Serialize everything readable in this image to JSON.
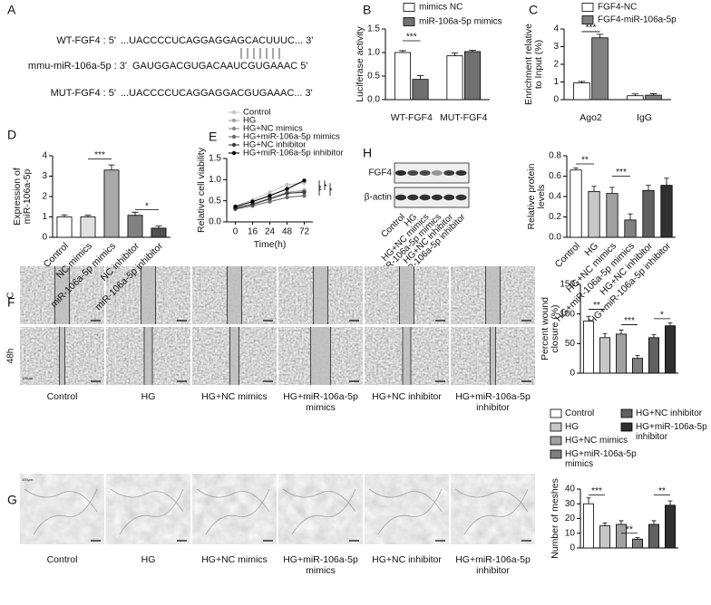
{
  "figure": {
    "panels": [
      "A",
      "B",
      "C",
      "D",
      "E",
      "F",
      "G",
      "H"
    ],
    "sequences": [
      {
        "label": "WT-FGF4 : 5'",
        "seq": "...UACCCCUCAGGAGGAGCACUUUC... 3'"
      },
      {
        "label": "mmu-miR-106a-5p : 3'",
        "seq": "GAUGGACGUGACAAUCGUGAAAC 5'"
      },
      {
        "label": "MUT-FGF4 : 5'",
        "seq": "...UACCCCUCAGGAGGACGUGAAAC... 3'"
      }
    ],
    "blot_labels": [
      "FGF4",
      "β-actin"
    ],
    "wound_rows": [
      "C",
      "48h"
    ],
    "scale_bar": "100μm"
  },
  "chart_data": [
    {
      "type": "bar",
      "ylabel": [
        "Luciferase activity"
      ],
      "categories": [
        "WT-FGF4",
        "MUT-FGF4"
      ],
      "series": [
        {
          "name": "mimics NC",
          "color": "#ffffff",
          "values": [
            1.0,
            0.93
          ],
          "errors": [
            0.04,
            0.06
          ]
        },
        {
          "name": "miR-106a-5p mimics",
          "color": "#707070",
          "values": [
            0.43,
            1.02
          ],
          "errors": [
            0.08,
            0.03
          ]
        }
      ],
      "ylim": [
        0,
        1.5
      ],
      "yticks": [
        {
          "value": 0,
          "label": "0.0"
        },
        0.5,
        {
          "value": 1,
          "label": "1.0"
        },
        1.5
      ],
      "annotations": [
        "***"
      ]
    },
    {
      "type": "bar",
      "ylabel": [
        "Enrichment relative",
        "to Input (%)"
      ],
      "categories": [
        "Ago2",
        "IgG"
      ],
      "series": [
        {
          "name": "FGF4-NC",
          "color": "#ffffff",
          "values": [
            0.95,
            0.22
          ],
          "errors": [
            0.08,
            0.1
          ]
        },
        {
          "name": "FGF4-miR-106a-5p",
          "color": "#808080",
          "values": [
            3.5,
            0.25
          ],
          "errors": [
            0.2,
            0.08
          ]
        }
      ],
      "ylim": [
        0,
        4
      ],
      "yticks": [
        0,
        1,
        2,
        3,
        4
      ],
      "annotations": [
        "***"
      ]
    },
    {
      "type": "bar",
      "ylabel": [
        "Expression of",
        "miR-106a-5p"
      ],
      "categories": [
        "Control",
        "NC mimics",
        "miR-106a-5p mimics",
        "NC inhibitor",
        "miR-106a-5p inhibitor"
      ],
      "values": [
        1.0,
        1.0,
        3.3,
        1.08,
        0.45
      ],
      "errors": [
        0.1,
        0.08,
        0.25,
        0.15,
        0.1
      ],
      "colors": [
        "#ffffff",
        "#e0e0e0",
        "#a8a8a8",
        "#808080",
        "#505050"
      ],
      "ylim": [
        0,
        4
      ],
      "yticks": [
        0,
        1,
        2,
        3,
        4
      ],
      "annotations": [
        "***",
        "*"
      ]
    },
    {
      "type": "line",
      "ylabel": [
        "Relative cell viability"
      ],
      "xlabel": "Time(h)",
      "categories": [
        "0",
        "16",
        "24",
        "48",
        "72"
      ],
      "series": [
        {
          "name": "Control",
          "color": "#c4c4c4",
          "values": [
            0.38,
            0.52,
            0.7,
            0.88,
            0.92
          ]
        },
        {
          "name": "HG",
          "color": "#a4a4a4",
          "values": [
            0.33,
            0.42,
            0.55,
            0.7,
            0.75
          ]
        },
        {
          "name": "HG+NC mimics",
          "color": "#8c8c8c",
          "values": [
            0.33,
            0.41,
            0.54,
            0.67,
            0.72
          ]
        },
        {
          "name": "HG+miR-106a-5p mimics",
          "color": "#6c6c6c",
          "values": [
            0.3,
            0.38,
            0.48,
            0.58,
            0.62
          ]
        },
        {
          "name": "HG+NC inhibitor",
          "color": "#3c3c3c",
          "values": [
            0.32,
            0.42,
            0.55,
            0.68,
            0.7
          ]
        },
        {
          "name": "HG+miR-106a-5p inhibitor",
          "color": "#000000",
          "values": [
            0.36,
            0.48,
            0.62,
            0.78,
            0.98
          ]
        }
      ],
      "ylim": [
        0,
        1.5
      ],
      "yticks": [
        {
          "value": 0,
          "label": "0.0"
        },
        0.5,
        {
          "value": 1,
          "label": "1.0"
        },
        1.5
      ],
      "annotations": [
        "**",
        "*",
        "*"
      ]
    },
    {
      "type": "bar",
      "ylabel": [
        "Relative protein",
        "levels"
      ],
      "categories": [
        "Control",
        "HG",
        "HG+NC mimics",
        "HG+miR-106a-5p mimics",
        "HG+NC inhibitor",
        "HG+miR-106a-5p inhibitor"
      ],
      "values": [
        0.66,
        0.45,
        0.43,
        0.17,
        0.46,
        0.51
      ],
      "errors": [
        0.02,
        0.05,
        0.06,
        0.06,
        0.05,
        0.07
      ],
      "colors": [
        "#ffffff",
        "#c8c8c8",
        "#a0a0a0",
        "#808080",
        "#606060",
        "#303030"
      ],
      "ylim": [
        0,
        0.8
      ],
      "yticks": [
        {
          "value": 0,
          "label": "0.0"
        },
        0.2,
        0.4,
        0.6,
        0.8
      ],
      "annotations": [
        "**",
        "***"
      ]
    },
    {
      "type": "bar",
      "ylabel": [
        "Percent wound",
        "closure (%)"
      ],
      "categories": [
        "Control",
        "HG",
        "HG+NC mimics",
        "HG+miR-106a-5p mimics",
        "HG+NC inhibitor",
        "HG+miR-106a-5p inhibitor"
      ],
      "values": [
        88,
        60,
        66,
        25,
        60,
        80
      ],
      "errors": [
        8,
        7,
        7,
        5,
        5,
        5
      ],
      "colors": [
        "#ffffff",
        "#c8c8c8",
        "#a0a0a0",
        "#808080",
        "#606060",
        "#303030"
      ],
      "ylim": [
        0,
        150
      ],
      "yticks": [
        0,
        50,
        100,
        150
      ],
      "annotations": [
        "**",
        "***",
        "*"
      ]
    },
    {
      "type": "bar",
      "ylabel": [
        "Number of meshes"
      ],
      "values": [
        30,
        15,
        16,
        6,
        16,
        29
      ],
      "errors": [
        4,
        2,
        2.5,
        1,
        2.5,
        3
      ],
      "colors": [
        "#ffffff",
        "#c8c8c8",
        "#a0a0a0",
        "#808080",
        "#606060",
        "#303030"
      ],
      "ylim": [
        0,
        40
      ],
      "yticks": [
        0,
        10,
        20,
        30,
        40
      ],
      "annotations": [
        "***",
        "**",
        "**"
      ]
    }
  ]
}
